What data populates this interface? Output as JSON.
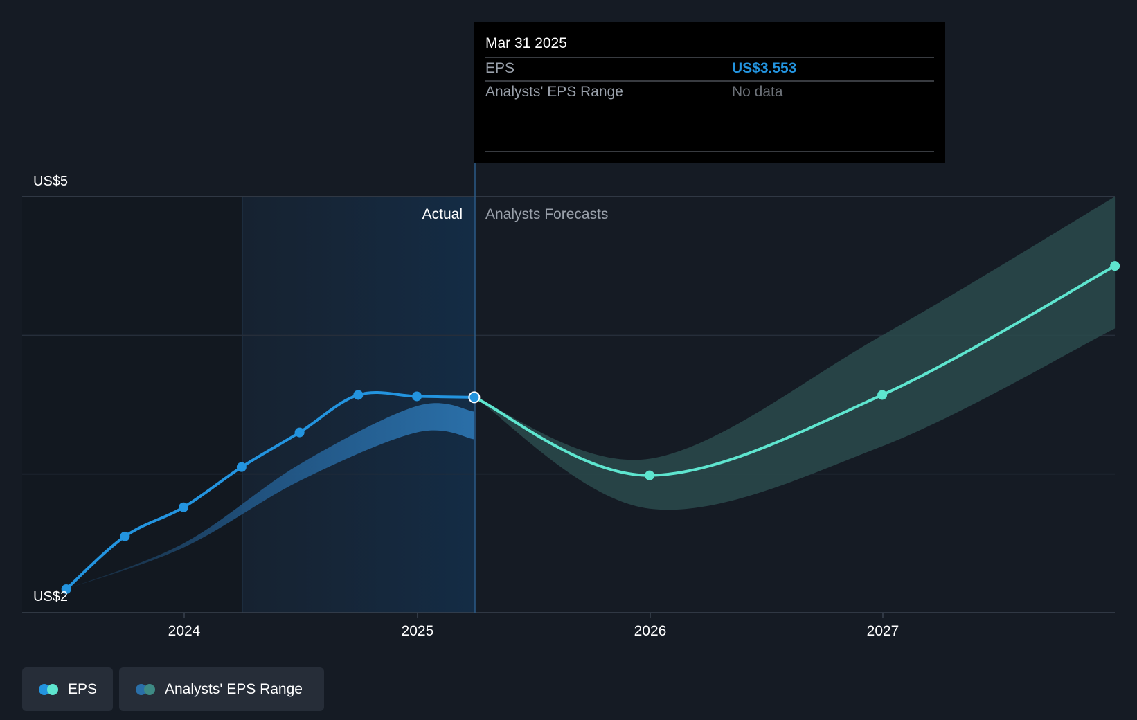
{
  "chart_data": {
    "type": "line",
    "y_axis": {
      "ticks": [
        {
          "value": 5,
          "label": "US$5"
        },
        {
          "value": 2,
          "label": "US$2"
        }
      ],
      "ylim": [
        2,
        5
      ]
    },
    "x_axis": {
      "tick_labels": [
        "2024",
        "2025",
        "2026",
        "2027"
      ]
    },
    "divider_labels": {
      "actual": "Actual",
      "forecast": "Analysts Forecasts"
    },
    "series": [
      {
        "name": "EPS",
        "segment": "actual",
        "color": "#2394df",
        "points": [
          {
            "x": "2023-06-30",
            "y": 2.17
          },
          {
            "x": "2023-09-30",
            "y": 2.55
          },
          {
            "x": "2023-12-31",
            "y": 2.76
          },
          {
            "x": "2024-03-31",
            "y": 3.05
          },
          {
            "x": "2024-06-30",
            "y": 3.3
          },
          {
            "x": "2024-09-30",
            "y": 3.57
          },
          {
            "x": "2024-12-31",
            "y": 3.56
          },
          {
            "x": "2025-03-31",
            "y": 3.553
          }
        ]
      },
      {
        "name": "EPS",
        "segment": "forecast",
        "color": "#5ee5cf",
        "points": [
          {
            "x": "2025-03-31",
            "y": 3.553
          },
          {
            "x": "2025-12-31",
            "y": 2.99
          },
          {
            "x": "2026-12-31",
            "y": 3.57
          },
          {
            "x": "2027-12-31",
            "y": 4.5
          }
        ]
      }
    ],
    "ranges": [
      {
        "name": "Analysts' EPS Range",
        "segment": "actual",
        "color": "#2a6fa8",
        "points": [
          {
            "x": "2023-06-30",
            "low": 2.17,
            "high": 2.17
          },
          {
            "x": "2023-12-31",
            "low": 2.47,
            "high": 2.5
          },
          {
            "x": "2024-06-30",
            "low": 2.95,
            "high": 3.07
          },
          {
            "x": "2024-12-31",
            "low": 3.3,
            "high": 3.49
          },
          {
            "x": "2025-03-31",
            "low": 3.25,
            "high": 3.45
          }
        ]
      },
      {
        "name": "Analysts' EPS Range",
        "segment": "forecast",
        "color": "#2a4a4c",
        "points": [
          {
            "x": "2025-03-31",
            "low": 3.553,
            "high": 3.553
          },
          {
            "x": "2025-12-31",
            "low": 2.75,
            "high": 3.11
          },
          {
            "x": "2026-12-31",
            "low": 3.2,
            "high": 4.0
          },
          {
            "x": "2027-12-31",
            "low": 4.05,
            "high": 5.0
          }
        ]
      }
    ],
    "grid": true,
    "tooltip": {
      "title": "Mar 31 2025",
      "rows": [
        {
          "label": "EPS",
          "value": "US$3.553"
        },
        {
          "label": "Analysts' EPS Range",
          "value": "No data"
        }
      ]
    },
    "legend": {
      "position": "bottom-left",
      "items": [
        {
          "label": "EPS",
          "colors": [
            "#2394df",
            "#5ee5cf"
          ]
        },
        {
          "label": "Analysts' EPS Range",
          "colors": [
            "#2a6fa8",
            "#3e8a84"
          ]
        }
      ]
    }
  }
}
